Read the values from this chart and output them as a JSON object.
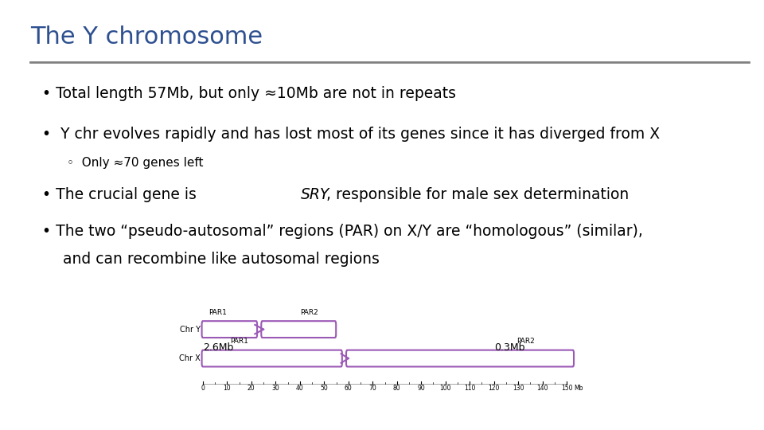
{
  "title": "The Y chromosome",
  "title_color": "#2E5090",
  "title_fontsize": 22,
  "separator_color": "#808080",
  "background_color": "#ffffff",
  "bullet1": "Total length 57Mb, but only ≈10Mb are not in repeats",
  "bullet2": "Y chr evolves rapidly and has lost most of its genes since it has diverged from X",
  "bullet3_pre": "The crucial gene is ",
  "bullet3_italic": "SRY",
  "bullet3_post": ", responsible for male sex determination",
  "bullet4_line1": "The two “pseudo-autosomal” regions (PAR) on X/Y are “homologous” (similar),",
  "bullet4_line2": "and can recombine like autosomal regions",
  "sub_bullet": "Only ≈70 genes left",
  "chr_y_label": "Chr Y",
  "chr_x_label": "Chr X",
  "par1_label": "PAR1",
  "par2_label": "PAR2",
  "label_26mb": "2.6Mb",
  "label_03mb": "0.3Mb",
  "scale_label": "Mb",
  "scale_ticks": [
    0,
    10,
    20,
    30,
    40,
    50,
    60,
    70,
    80,
    90,
    100,
    110,
    120,
    130,
    140,
    150
  ],
  "chry_color": "#9B59B6",
  "chrx_color": "#9B59B6",
  "chr_fill": "#ffffff"
}
